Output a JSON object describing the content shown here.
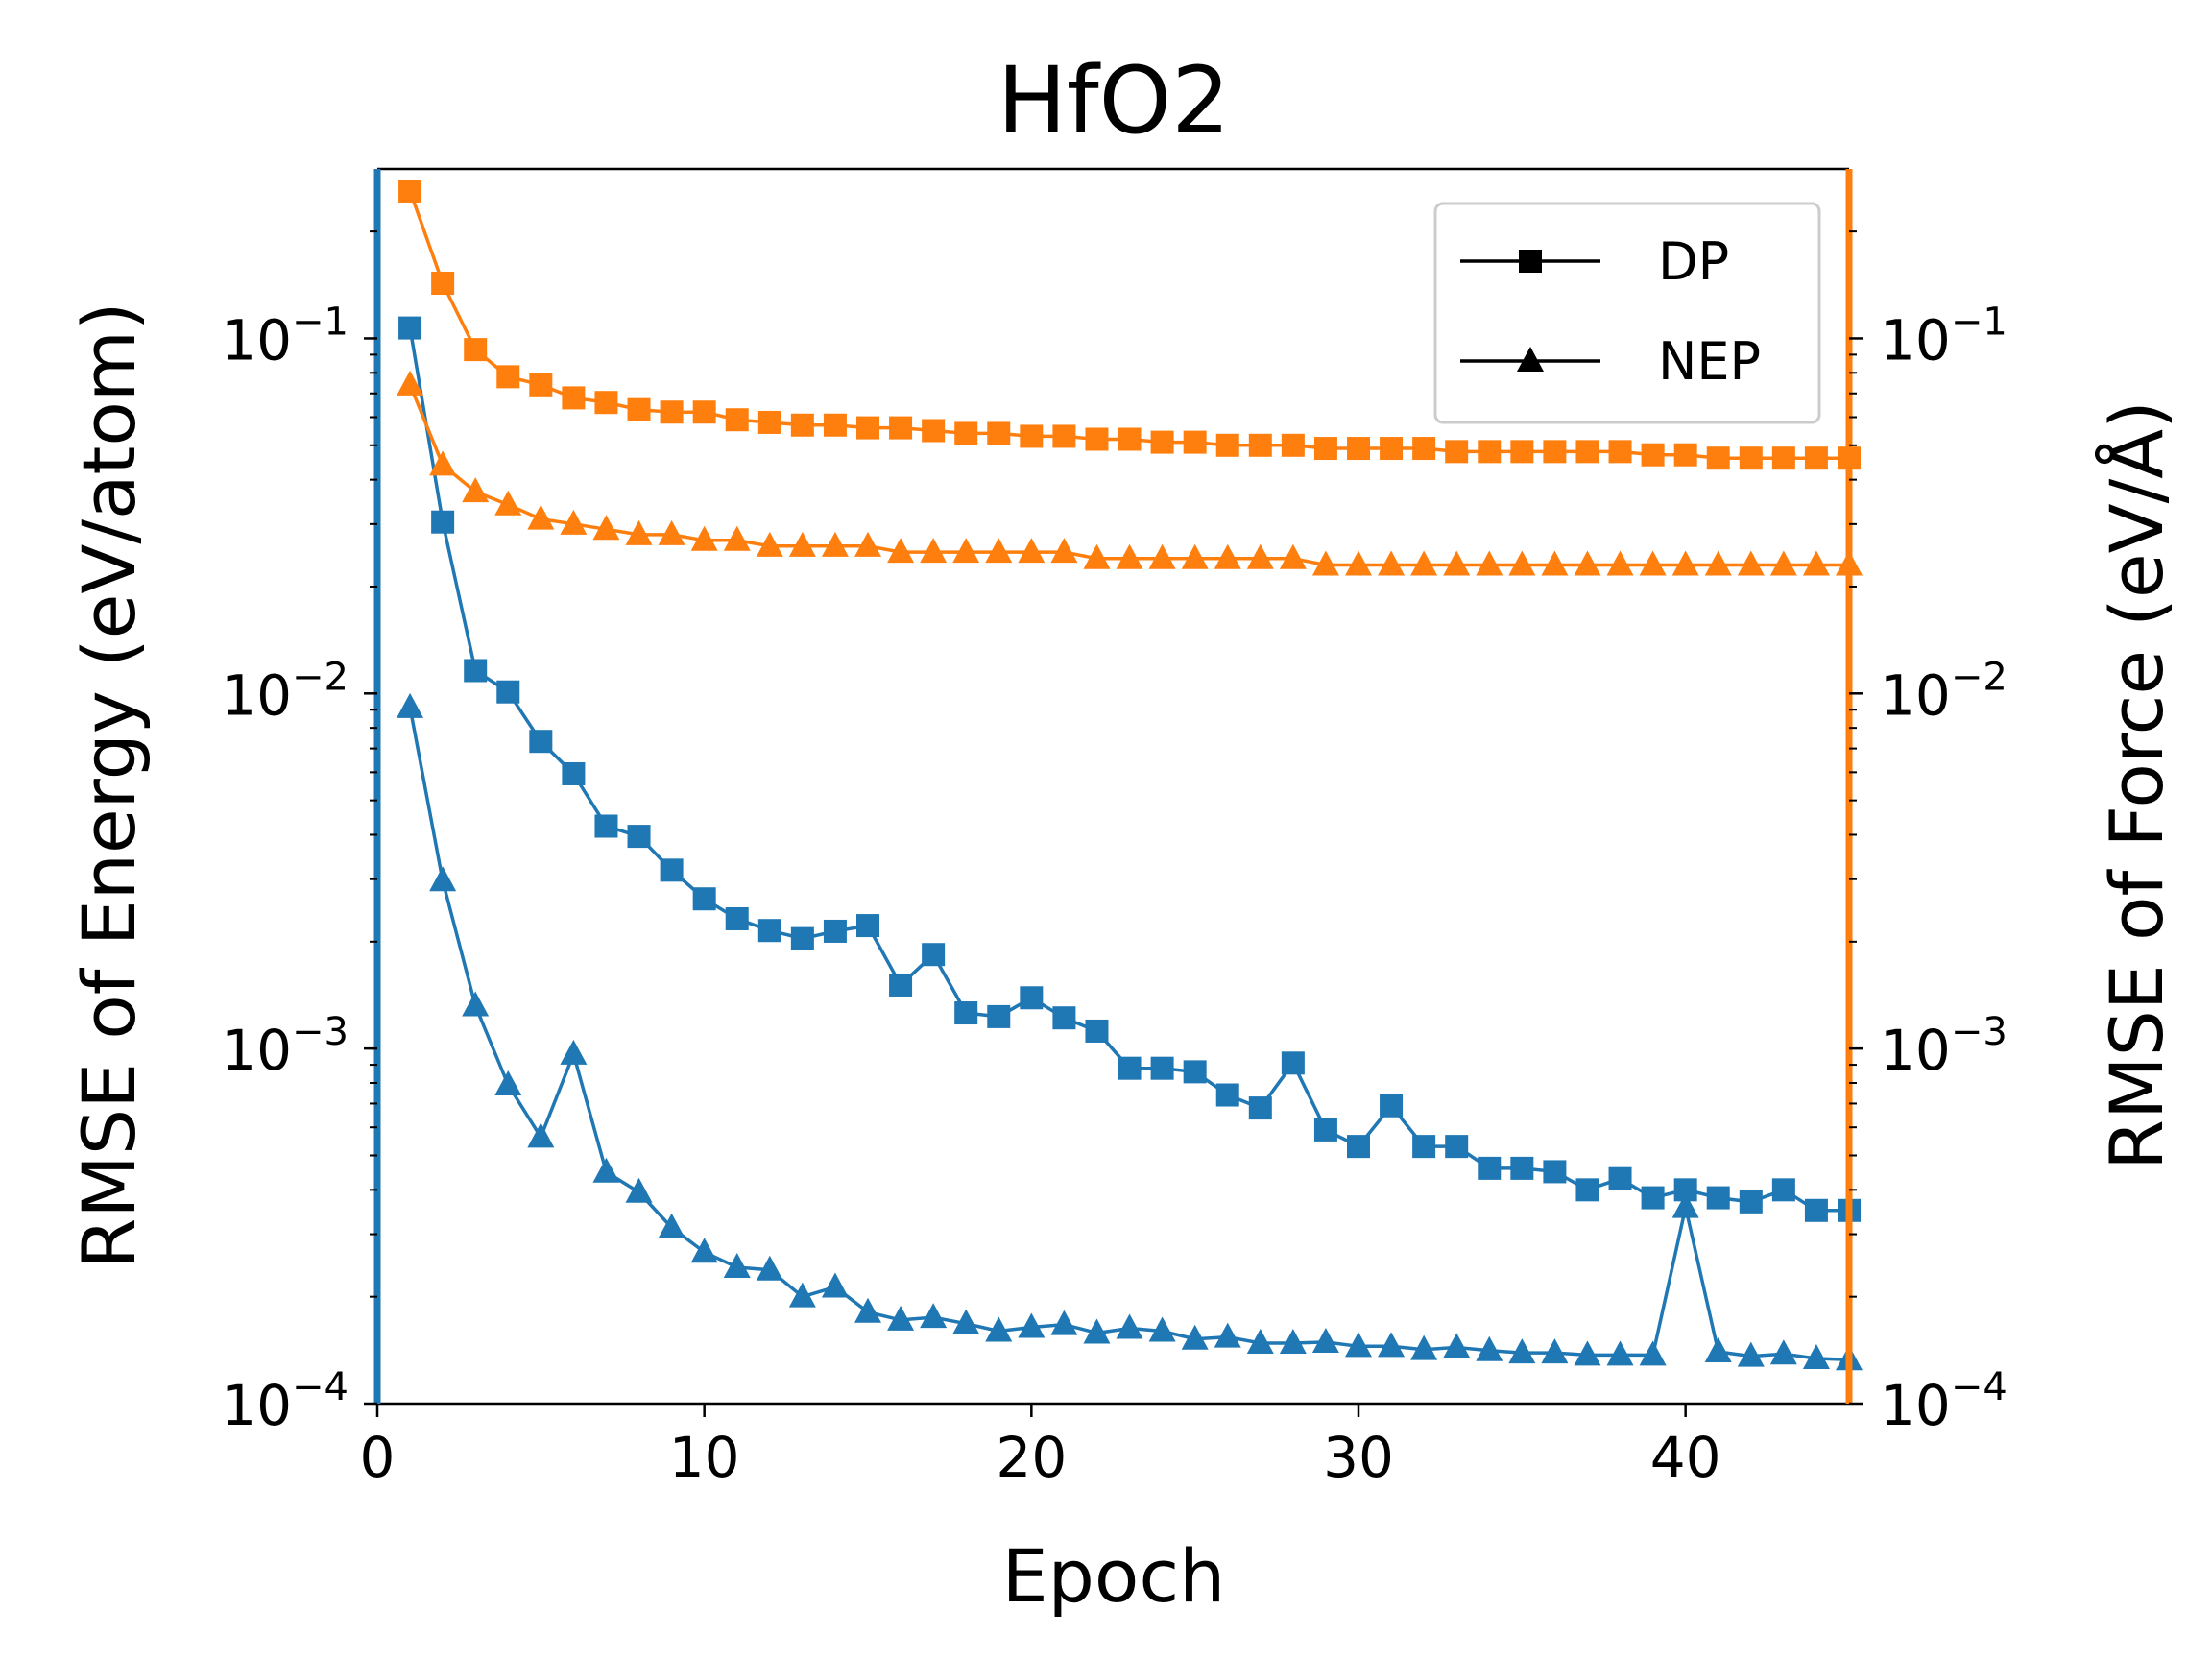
{
  "chart_data": {
    "type": "line",
    "title": "HfO2",
    "xlabel": "Epoch",
    "ylabel_left": "RMSE of Energy (eV/atom)",
    "ylabel_right": "RMSE of Force (eV/Å)",
    "xlim": [
      0,
      45
    ],
    "ylim_left": [
      0.0001,
      0.3
    ],
    "ylim_right": [
      0.0001,
      0.3
    ],
    "yscale": "log",
    "grid": false,
    "legend_position": "top-right",
    "x_ticks": [
      "0",
      "10",
      "20",
      "30",
      "40"
    ],
    "y_ticks": [
      {
        "base": "10",
        "exp": "−1"
      },
      {
        "base": "10",
        "exp": "−2"
      },
      {
        "base": "10",
        "exp": "−3"
      },
      {
        "base": "10",
        "exp": "−4"
      }
    ],
    "colors": {
      "energy": "#1f77b4",
      "force": "#ff7f0e",
      "legend": "#000000"
    },
    "legend": [
      {
        "label": "DP",
        "marker": "square"
      },
      {
        "label": "NEP",
        "marker": "triangle"
      }
    ],
    "x": [
      1,
      2,
      3,
      4,
      5,
      6,
      7,
      8,
      9,
      10,
      11,
      12,
      13,
      14,
      15,
      16,
      17,
      18,
      19,
      20,
      21,
      22,
      23,
      24,
      25,
      26,
      27,
      28,
      29,
      30,
      31,
      32,
      33,
      34,
      35,
      36,
      37,
      38,
      39,
      40,
      41,
      42,
      43,
      44,
      45
    ],
    "series": [
      {
        "model": "DP",
        "quantity": "energy",
        "axis": "left",
        "marker": "square",
        "values": [
          0.107,
          0.0304,
          0.0116,
          0.0101,
          0.00733,
          0.00594,
          0.00423,
          0.00396,
          0.00318,
          0.00264,
          0.00232,
          0.00215,
          0.00204,
          0.00214,
          0.00222,
          0.00151,
          0.00184,
          0.00126,
          0.00123,
          0.00139,
          0.00122,
          0.00112,
          0.00088,
          0.00088,
          0.00086,
          0.00074,
          0.00068,
          0.00091,
          0.00059,
          0.00053,
          0.00069,
          0.00053,
          0.00053,
          0.00046,
          0.00046,
          0.00045,
          0.0004,
          0.00043,
          0.00038,
          0.0004,
          0.00038,
          0.00037,
          0.0004,
          0.00035,
          0.00035
        ]
      },
      {
        "model": "NEP",
        "quantity": "energy",
        "axis": "left",
        "marker": "triangle",
        "values": [
          0.00913,
          0.00297,
          0.00132,
          0.00079,
          0.000563,
          0.000965,
          0.000449,
          0.000394,
          0.000313,
          0.000267,
          0.000242,
          0.000238,
          0.0002,
          0.000213,
          0.000181,
          0.000172,
          0.000175,
          0.000168,
          0.00016,
          0.000164,
          0.000167,
          0.000158,
          0.000163,
          0.00016,
          0.000152,
          0.000154,
          0.000148,
          0.000148,
          0.000149,
          0.000145,
          0.000145,
          0.000142,
          0.000144,
          0.000141,
          0.000139,
          0.000139,
          0.000137,
          0.000137,
          0.000137,
          0.000357,
          0.00014,
          0.000136,
          0.000138,
          0.000134,
          0.000133
        ]
      },
      {
        "model": "DP",
        "quantity": "force",
        "axis": "right",
        "marker": "square",
        "values": [
          0.26,
          0.143,
          0.093,
          0.078,
          0.074,
          0.068,
          0.066,
          0.063,
          0.062,
          0.062,
          0.059,
          0.058,
          0.057,
          0.057,
          0.056,
          0.056,
          0.055,
          0.054,
          0.054,
          0.053,
          0.053,
          0.052,
          0.052,
          0.051,
          0.051,
          0.05,
          0.05,
          0.05,
          0.049,
          0.049,
          0.049,
          0.049,
          0.048,
          0.048,
          0.048,
          0.048,
          0.048,
          0.048,
          0.047,
          0.047,
          0.046,
          0.046,
          0.046,
          0.046,
          0.046
        ]
      },
      {
        "model": "NEP",
        "quantity": "force",
        "axis": "right",
        "marker": "triangle",
        "values": [
          0.074,
          0.044,
          0.037,
          0.034,
          0.031,
          0.03,
          0.029,
          0.028,
          0.028,
          0.027,
          0.027,
          0.026,
          0.026,
          0.026,
          0.026,
          0.025,
          0.025,
          0.025,
          0.025,
          0.025,
          0.025,
          0.024,
          0.024,
          0.024,
          0.024,
          0.024,
          0.024,
          0.024,
          0.023,
          0.023,
          0.023,
          0.023,
          0.023,
          0.023,
          0.023,
          0.023,
          0.023,
          0.023,
          0.023,
          0.023,
          0.023,
          0.023,
          0.023,
          0.023,
          0.023
        ]
      }
    ]
  }
}
